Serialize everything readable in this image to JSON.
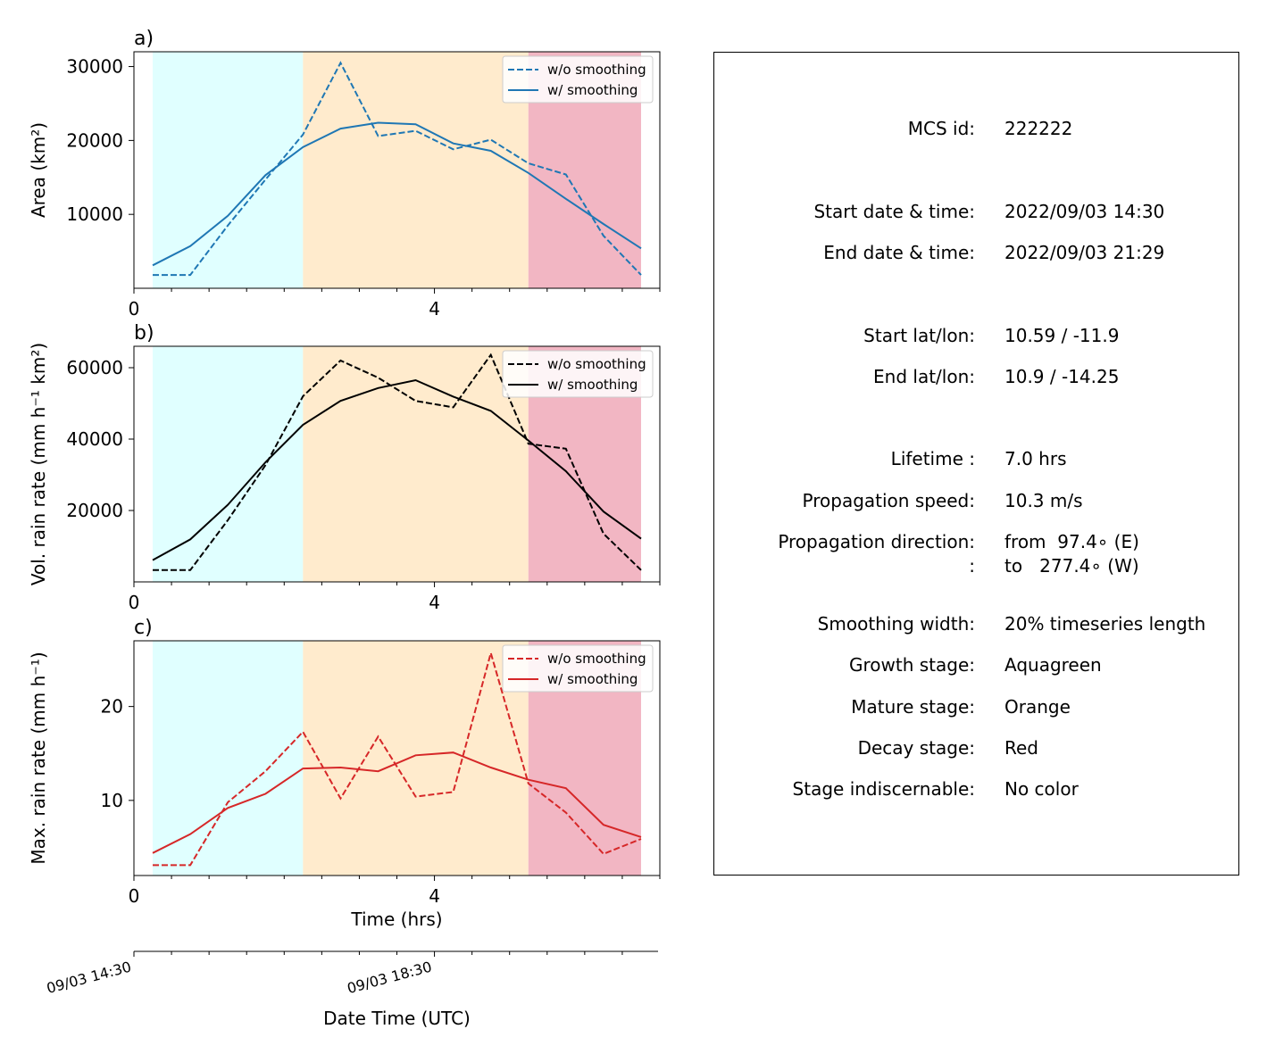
{
  "chart_data": [
    {
      "type": "line",
      "panel_label": "a)",
      "ylabel": "Area  (km²)",
      "xlim": [
        0,
        7
      ],
      "ylim": [
        0,
        32000
      ],
      "xticks": [
        0,
        4
      ],
      "yticks": [
        10000,
        20000,
        30000
      ],
      "stages": [
        {
          "stage": "growth",
          "color": "#e0ffff",
          "x": [
            0.25,
            2.25
          ]
        },
        {
          "stage": "mature",
          "color": "#ffebcd",
          "x": [
            2.25,
            5.25
          ]
        },
        {
          "stage": "decay",
          "color": "#f2b6c3",
          "x": [
            5.25,
            6.75
          ]
        }
      ],
      "series": [
        {
          "name": "w/o smoothing",
          "style": "dashed",
          "color": "#1f77b4",
          "x": [
            0.25,
            0.75,
            1.25,
            1.75,
            2.25,
            2.75,
            3.25,
            3.75,
            4.25,
            4.75,
            5.25,
            5.75,
            6.25,
            6.75
          ],
          "y": [
            1800,
            1800,
            8500,
            14700,
            20800,
            30500,
            20600,
            21300,
            18800,
            20100,
            16900,
            15400,
            7100,
            1800
          ]
        },
        {
          "name": "w/ smoothing",
          "style": "solid",
          "color": "#1f77b4",
          "x": [
            0.25,
            0.75,
            1.25,
            1.75,
            2.25,
            2.75,
            3.25,
            3.75,
            4.25,
            4.75,
            5.25,
            5.75,
            6.25,
            6.75
          ],
          "y": [
            3100,
            5700,
            9800,
            15300,
            19100,
            21600,
            22400,
            22200,
            19600,
            18600,
            15600,
            12100,
            8700,
            5400
          ]
        }
      ]
    },
    {
      "type": "line",
      "panel_label": "b)",
      "ylabel": "Vol. rain rate (mm h⁻¹ km²)",
      "xlim": [
        0,
        7
      ],
      "ylim": [
        0,
        66000
      ],
      "xticks": [
        0,
        4
      ],
      "yticks": [
        20000,
        40000,
        60000
      ],
      "stages": [
        {
          "stage": "growth",
          "color": "#e0ffff",
          "x": [
            0.25,
            2.25
          ]
        },
        {
          "stage": "mature",
          "color": "#ffebcd",
          "x": [
            2.25,
            5.25
          ]
        },
        {
          "stage": "decay",
          "color": "#f2b6c3",
          "x": [
            5.25,
            6.75
          ]
        }
      ],
      "series": [
        {
          "name": "w/o smoothing",
          "style": "dashed",
          "color": "#000000",
          "x": [
            0.25,
            0.75,
            1.25,
            1.75,
            2.25,
            2.75,
            3.25,
            3.75,
            4.25,
            4.75,
            5.25,
            5.75,
            6.25,
            6.75
          ],
          "y": [
            3300,
            3300,
            17300,
            32700,
            52000,
            62000,
            57200,
            50700,
            48900,
            63600,
            38700,
            37300,
            13500,
            3300
          ]
        },
        {
          "name": "w/ smoothing",
          "style": "solid",
          "color": "#000000",
          "x": [
            0.25,
            0.75,
            1.25,
            1.75,
            2.25,
            2.75,
            3.25,
            3.75,
            4.25,
            4.75,
            5.25,
            5.75,
            6.25,
            6.75
          ],
          "y": [
            6100,
            11900,
            21600,
            33500,
            44000,
            50700,
            54300,
            56500,
            51900,
            47900,
            39600,
            31000,
            19700,
            12100
          ]
        }
      ]
    },
    {
      "type": "line",
      "panel_label": "c)",
      "ylabel": "Max. rain rate  (mm h⁻¹)",
      "xlabel": "Time (hrs)",
      "xlim": [
        0,
        7
      ],
      "ylim": [
        2,
        27
      ],
      "xticks": [
        0,
        4
      ],
      "yticks": [
        10,
        20
      ],
      "stages": [
        {
          "stage": "growth",
          "color": "#e0ffff",
          "x": [
            0.25,
            2.25
          ]
        },
        {
          "stage": "mature",
          "color": "#ffebcd",
          "x": [
            2.25,
            5.25
          ]
        },
        {
          "stage": "decay",
          "color": "#f2b6c3",
          "x": [
            5.25,
            6.75
          ]
        }
      ],
      "series": [
        {
          "name": "w/o smoothing",
          "style": "dashed",
          "color": "#d62728",
          "x": [
            0.25,
            0.75,
            1.25,
            1.75,
            2.25,
            2.75,
            3.25,
            3.75,
            4.25,
            4.75,
            5.25,
            5.75,
            6.25,
            6.75
          ],
          "y": [
            3.1,
            3.1,
            9.8,
            13.1,
            17.3,
            10.2,
            16.8,
            10.4,
            10.9,
            25.7,
            11.8,
            8.7,
            4.3,
            5.9
          ]
        },
        {
          "name": "w/ smoothing",
          "style": "solid",
          "color": "#d62728",
          "x": [
            0.25,
            0.75,
            1.25,
            1.75,
            2.25,
            2.75,
            3.25,
            3.75,
            4.25,
            4.75,
            5.25,
            5.75,
            6.25,
            6.75
          ],
          "y": [
            4.4,
            6.4,
            9.2,
            10.7,
            13.4,
            13.5,
            13.1,
            14.8,
            15.1,
            13.5,
            12.2,
            11.3,
            7.4,
            6.1
          ]
        }
      ]
    }
  ],
  "datetime_axis": {
    "xlabel": "Date Time (UTC)",
    "ticks": [
      {
        "x": 0,
        "label": "09/03 14:30"
      },
      {
        "x": 4,
        "label": "09/03 18:30"
      }
    ]
  },
  "info": [
    {
      "label": "MCS id:",
      "value": "222222"
    },
    {
      "label": "Start date & time:",
      "value": "2022/09/03 14:30"
    },
    {
      "label": "End date & time:",
      "value": "2022/09/03 21:29"
    },
    {
      "label": "Start lat/lon:",
      "value": "10.59 / -11.9"
    },
    {
      "label": "End lat/lon:",
      "value": "10.9 / -14.25"
    },
    {
      "label": "Lifetime :",
      "value": "7.0 hrs"
    },
    {
      "label": "Propagation speed:",
      "value": "10.3 m/s"
    },
    {
      "label": "Propagation direction:",
      "value": "from  97.4∘ (E)"
    },
    {
      "label": ":",
      "value": "to   277.4∘ (W)"
    },
    {
      "label": "Smoothing width:",
      "value": "20% timeseries length"
    },
    {
      "label": "Growth stage:",
      "value": "Aquagreen"
    },
    {
      "label": "Mature stage:",
      "value": "Orange"
    },
    {
      "label": "Decay stage:",
      "value": "Red"
    },
    {
      "label": "Stage indiscernable:",
      "value": "No color"
    }
  ]
}
